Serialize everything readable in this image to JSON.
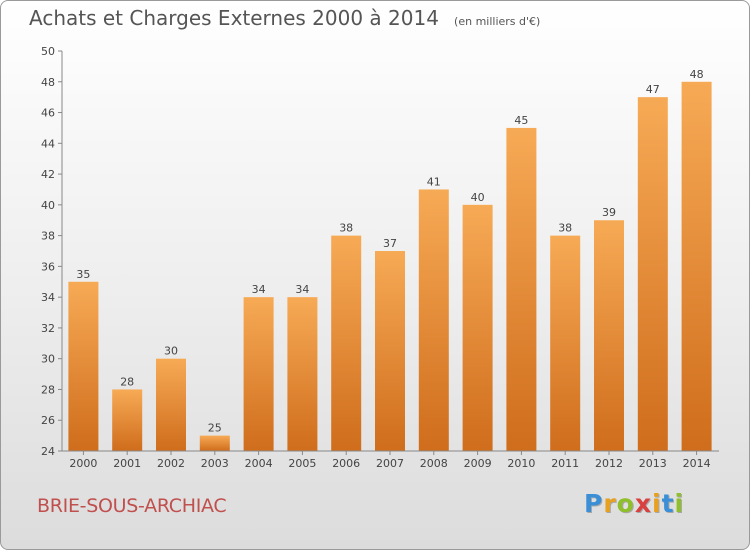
{
  "title": "Achats et Charges Externes 2000 à 2014",
  "unit_note": "(en milliers d'€)",
  "location": "BRIE-SOUS-ARCHIAC",
  "logo": {
    "letters": [
      "P",
      "r",
      "o",
      "x",
      "i",
      "t",
      "i"
    ],
    "colors": [
      "#3a8fd6",
      "#e8a020",
      "#8fbf2a",
      "#d94040",
      "#e8a020",
      "#3a8fd6",
      "#8fbf2a"
    ]
  },
  "colors": {
    "bar_top": "#f7aa55",
    "bar_bottom": "#cf6d1c",
    "location": "#c0504d"
  },
  "chart_data": {
    "type": "bar",
    "title": "Achats et Charges Externes 2000 à 2014",
    "categories": [
      "2000",
      "2001",
      "2002",
      "2003",
      "2004",
      "2005",
      "2006",
      "2007",
      "2008",
      "2009",
      "2010",
      "2011",
      "2012",
      "2013",
      "2014"
    ],
    "values": [
      35,
      28,
      30,
      25,
      34,
      34,
      38,
      37,
      41,
      40,
      45,
      38,
      39,
      47,
      48
    ],
    "ylim": [
      24,
      50
    ],
    "yticks": [
      "24",
      "26",
      "28",
      "30",
      "32",
      "34",
      "36",
      "38",
      "40",
      "42",
      "44",
      "46",
      "48",
      "50"
    ],
    "grid": false,
    "legend": "none"
  }
}
